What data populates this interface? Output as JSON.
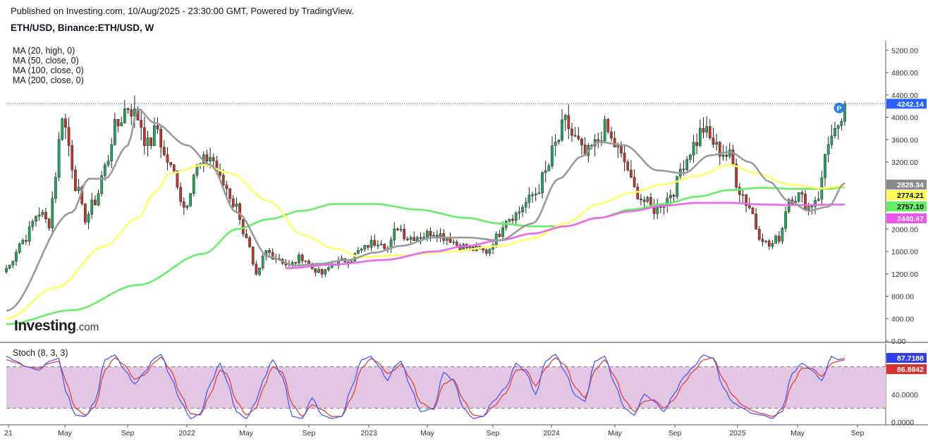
{
  "header": {
    "published": "Published on Investing.com, 10/Aug/2025 - 23:30:00 GMT, Powered by TradingView.",
    "symbol": "ETH/USD, Binance:ETH/USD, W"
  },
  "indicators": [
    "MA (20, high, 0)",
    "MA (50, close, 0)",
    "MA (100, close, 0)",
    "MA (200, close, 0)"
  ],
  "stoch_label": "Stoch (8, 3, 3)",
  "logo": {
    "bold": "Investing",
    "suffix": ".com"
  },
  "colors": {
    "up": "#26a65b",
    "down": "#c0392b",
    "ma20": "#9a9a9a",
    "ma50": "#ffff66",
    "ma100": "#66ee66",
    "ma200": "#ee66ee",
    "stochK": "#4a5cf0",
    "stochD": "#e04040",
    "stochBand": "#e2c6e2",
    "priceLine": "#2962ff"
  },
  "chart_data": {
    "type": "candlestick",
    "interval": "W",
    "price_axis": {
      "ticks": [
        "5200.00",
        "4800.00",
        "4400.00",
        "4000.00",
        "3600.00",
        "3200.00",
        "2000.00",
        "1600.00",
        "1200.00",
        "800.00",
        "400.00",
        "0.00"
      ],
      "ylim": [
        0,
        5400
      ]
    },
    "x_ticks": [
      "21",
      "May",
      "Sep",
      "2022",
      "May",
      "Sep",
      "2023",
      "May",
      "Sep",
      "2024",
      "May",
      "Sep",
      "2025",
      "May",
      "Sep"
    ],
    "labels": {
      "last_price": "4242.14",
      "ma20": "2828.34",
      "ma50": "2774.21",
      "ma100": "2757.10",
      "ma200": "2440.47",
      "pin": "P"
    },
    "stoch_axis": {
      "ticks": [
        "40.0000",
        "0.0000"
      ],
      "ylim": [
        0,
        100
      ]
    },
    "stoch_labels": {
      "k": "87.7188",
      "d": "86.8842"
    },
    "stoch_band": [
      20,
      80
    ],
    "price_anchors": [
      [
        0,
        1300
      ],
      [
        5,
        1800
      ],
      [
        10,
        2300
      ],
      [
        13,
        2100
      ],
      [
        15,
        3000
      ],
      [
        17,
        4100
      ],
      [
        19,
        3500
      ],
      [
        21,
        2800
      ],
      [
        24,
        2200
      ],
      [
        27,
        2500
      ],
      [
        30,
        3100
      ],
      [
        33,
        3800
      ],
      [
        37,
        4200
      ],
      [
        40,
        4000
      ],
      [
        43,
        3500
      ],
      [
        46,
        3800
      ],
      [
        48,
        3300
      ],
      [
        51,
        3000
      ],
      [
        54,
        2400
      ],
      [
        58,
        3100
      ],
      [
        62,
        3300
      ],
      [
        66,
        2800
      ],
      [
        70,
        2400
      ],
      [
        73,
        1800
      ],
      [
        76,
        1150
      ],
      [
        79,
        1600
      ],
      [
        82,
        1500
      ],
      [
        86,
        1350
      ],
      [
        90,
        1500
      ],
      [
        93,
        1300
      ],
      [
        96,
        1200
      ],
      [
        100,
        1400
      ],
      [
        104,
        1450
      ],
      [
        108,
        1620
      ],
      [
        111,
        1750
      ],
      [
        114,
        1800
      ],
      [
        116,
        1650
      ],
      [
        119,
        2050
      ],
      [
        122,
        1850
      ],
      [
        126,
        1880
      ],
      [
        130,
        1950
      ],
      [
        134,
        1850
      ],
      [
        138,
        1700
      ],
      [
        142,
        1640
      ],
      [
        146,
        1600
      ],
      [
        149,
        1850
      ],
      [
        152,
        2200
      ],
      [
        155,
        2270
      ],
      [
        158,
        2470
      ],
      [
        161,
        2650
      ],
      [
        164,
        3000
      ],
      [
        167,
        3500
      ],
      [
        170,
        3900
      ],
      [
        173,
        3600
      ],
      [
        176,
        3300
      ],
      [
        179,
        3500
      ],
      [
        182,
        3800
      ],
      [
        185,
        3500
      ],
      [
        188,
        3200
      ],
      [
        191,
        2700
      ],
      [
        194,
        2500
      ],
      [
        197,
        2350
      ],
      [
        200,
        2500
      ],
      [
        203,
        2700
      ],
      [
        206,
        3200
      ],
      [
        209,
        3500
      ],
      [
        212,
        3800
      ],
      [
        214,
        3600
      ],
      [
        217,
        3400
      ],
      [
        220,
        3300
      ],
      [
        223,
        2700
      ],
      [
        226,
        2400
      ],
      [
        229,
        1900
      ],
      [
        232,
        1700
      ],
      [
        235,
        1850
      ],
      [
        238,
        2550
      ],
      [
        241,
        2600
      ],
      [
        244,
        2400
      ],
      [
        247,
        2600
      ],
      [
        250,
        3600
      ],
      [
        253,
        3700
      ],
      [
        255,
        4242
      ]
    ],
    "ma_anchors": {
      "ma20": [
        [
          0,
          540
        ],
        [
          20,
          2300
        ],
        [
          25,
          2900
        ],
        [
          30,
          2900
        ],
        [
          37,
          3500
        ],
        [
          40,
          4150
        ],
        [
          45,
          3900
        ],
        [
          55,
          3500
        ],
        [
          62,
          3150
        ],
        [
          70,
          2300
        ],
        [
          80,
          1500
        ],
        [
          88,
          1350
        ],
        [
          95,
          1380
        ],
        [
          104,
          1450
        ],
        [
          112,
          1580
        ],
        [
          120,
          1700
        ],
        [
          130,
          1850
        ],
        [
          140,
          1850
        ],
        [
          150,
          1800
        ],
        [
          160,
          2100
        ],
        [
          168,
          2900
        ],
        [
          175,
          3300
        ],
        [
          180,
          3560
        ],
        [
          188,
          3500
        ],
        [
          198,
          3050
        ],
        [
          206,
          3000
        ],
        [
          214,
          3320
        ],
        [
          220,
          3380
        ],
        [
          226,
          3200
        ],
        [
          232,
          2850
        ],
        [
          238,
          2500
        ],
        [
          244,
          2330
        ],
        [
          250,
          2400
        ],
        [
          255,
          2828
        ]
      ],
      "ma50": [
        [
          0,
          400
        ],
        [
          15,
          950
        ],
        [
          30,
          1700
        ],
        [
          40,
          2200
        ],
        [
          45,
          2650
        ],
        [
          50,
          3000
        ],
        [
          60,
          3150
        ],
        [
          68,
          3000
        ],
        [
          80,
          2500
        ],
        [
          90,
          1900
        ],
        [
          100,
          1650
        ],
        [
          108,
          1500
        ],
        [
          120,
          1530
        ],
        [
          135,
          1600
        ],
        [
          150,
          1700
        ],
        [
          160,
          1830
        ],
        [
          170,
          2100
        ],
        [
          180,
          2450
        ],
        [
          190,
          2650
        ],
        [
          200,
          2800
        ],
        [
          210,
          2950
        ],
        [
          220,
          3150
        ],
        [
          228,
          3000
        ],
        [
          238,
          2800
        ],
        [
          248,
          2730
        ],
        [
          255,
          2774
        ]
      ],
      "ma100": [
        [
          0,
          300
        ],
        [
          20,
          550
        ],
        [
          40,
          1000
        ],
        [
          60,
          1560
        ],
        [
          70,
          2000
        ],
        [
          80,
          2180
        ],
        [
          90,
          2330
        ],
        [
          100,
          2450
        ],
        [
          112,
          2450
        ],
        [
          125,
          2350
        ],
        [
          140,
          2200
        ],
        [
          150,
          2100
        ],
        [
          160,
          2050
        ],
        [
          170,
          2050
        ],
        [
          180,
          2200
        ],
        [
          190,
          2350
        ],
        [
          200,
          2450
        ],
        [
          210,
          2580
        ],
        [
          220,
          2700
        ],
        [
          230,
          2740
        ],
        [
          240,
          2720
        ],
        [
          250,
          2720
        ],
        [
          255,
          2757
        ]
      ],
      "ma200": [
        [
          85,
          1300
        ],
        [
          100,
          1370
        ],
        [
          115,
          1450
        ],
        [
          130,
          1600
        ],
        [
          140,
          1700
        ],
        [
          150,
          1800
        ],
        [
          160,
          1920
        ],
        [
          170,
          2050
        ],
        [
          180,
          2200
        ],
        [
          190,
          2320
        ],
        [
          200,
          2420
        ],
        [
          210,
          2470
        ],
        [
          220,
          2470
        ],
        [
          230,
          2440
        ],
        [
          240,
          2430
        ],
        [
          255,
          2440
        ]
      ]
    },
    "stoch_k_anchors": [
      [
        0,
        95
      ],
      [
        3,
        88
      ],
      [
        6,
        80
      ],
      [
        10,
        75
      ],
      [
        13,
        88
      ],
      [
        16,
        92
      ],
      [
        18,
        45
      ],
      [
        21,
        10
      ],
      [
        24,
        8
      ],
      [
        27,
        30
      ],
      [
        30,
        90
      ],
      [
        33,
        97
      ],
      [
        36,
        75
      ],
      [
        39,
        55
      ],
      [
        42,
        72
      ],
      [
        45,
        92
      ],
      [
        47,
        98
      ],
      [
        50,
        65
      ],
      [
        53,
        30
      ],
      [
        56,
        5
      ],
      [
        59,
        12
      ],
      [
        62,
        55
      ],
      [
        65,
        85
      ],
      [
        67,
        60
      ],
      [
        70,
        15
      ],
      [
        73,
        5
      ],
      [
        76,
        30
      ],
      [
        78,
        60
      ],
      [
        81,
        90
      ],
      [
        84,
        65
      ],
      [
        87,
        8
      ],
      [
        90,
        5
      ],
      [
        93,
        35
      ],
      [
        96,
        10
      ],
      [
        99,
        5
      ],
      [
        102,
        8
      ],
      [
        105,
        50
      ],
      [
        108,
        90
      ],
      [
        111,
        95
      ],
      [
        113,
        82
      ],
      [
        116,
        60
      ],
      [
        118,
        80
      ],
      [
        120,
        88
      ],
      [
        123,
        50
      ],
      [
        126,
        15
      ],
      [
        130,
        20
      ],
      [
        133,
        72
      ],
      [
        136,
        60
      ],
      [
        139,
        20
      ],
      [
        142,
        5
      ],
      [
        145,
        8
      ],
      [
        148,
        30
      ],
      [
        152,
        50
      ],
      [
        155,
        85
      ],
      [
        158,
        72
      ],
      [
        161,
        40
      ],
      [
        164,
        88
      ],
      [
        167,
        98
      ],
      [
        170,
        72
      ],
      [
        173,
        38
      ],
      [
        176,
        30
      ],
      [
        179,
        88
      ],
      [
        182,
        95
      ],
      [
        185,
        55
      ],
      [
        188,
        20
      ],
      [
        191,
        10
      ],
      [
        194,
        40
      ],
      [
        197,
        30
      ],
      [
        200,
        15
      ],
      [
        203,
        40
      ],
      [
        206,
        65
      ],
      [
        209,
        80
      ],
      [
        212,
        97
      ],
      [
        215,
        92
      ],
      [
        218,
        50
      ],
      [
        221,
        28
      ],
      [
        224,
        20
      ],
      [
        227,
        12
      ],
      [
        230,
        10
      ],
      [
        233,
        5
      ],
      [
        236,
        20
      ],
      [
        239,
        70
      ],
      [
        242,
        85
      ],
      [
        245,
        75
      ],
      [
        248,
        60
      ],
      [
        251,
        95
      ],
      [
        253,
        90
      ],
      [
        255,
        92
      ]
    ],
    "stoch_d_anchors": [
      [
        0,
        90
      ],
      [
        3,
        86
      ],
      [
        6,
        80
      ],
      [
        10,
        78
      ],
      [
        13,
        85
      ],
      [
        16,
        88
      ],
      [
        18,
        60
      ],
      [
        21,
        20
      ],
      [
        24,
        10
      ],
      [
        27,
        22
      ],
      [
        30,
        75
      ],
      [
        33,
        93
      ],
      [
        36,
        82
      ],
      [
        39,
        62
      ],
      [
        42,
        68
      ],
      [
        45,
        86
      ],
      [
        47,
        94
      ],
      [
        50,
        75
      ],
      [
        53,
        40
      ],
      [
        56,
        12
      ],
      [
        59,
        10
      ],
      [
        62,
        40
      ],
      [
        65,
        75
      ],
      [
        67,
        70
      ],
      [
        70,
        30
      ],
      [
        73,
        10
      ],
      [
        76,
        20
      ],
      [
        78,
        48
      ],
      [
        81,
        80
      ],
      [
        84,
        72
      ],
      [
        87,
        25
      ],
      [
        90,
        8
      ],
      [
        93,
        25
      ],
      [
        96,
        18
      ],
      [
        99,
        8
      ],
      [
        102,
        8
      ],
      [
        105,
        35
      ],
      [
        108,
        78
      ],
      [
        111,
        92
      ],
      [
        113,
        86
      ],
      [
        116,
        70
      ],
      [
        118,
        75
      ],
      [
        120,
        84
      ],
      [
        123,
        62
      ],
      [
        126,
        28
      ],
      [
        130,
        18
      ],
      [
        133,
        55
      ],
      [
        136,
        62
      ],
      [
        139,
        32
      ],
      [
        142,
        10
      ],
      [
        145,
        8
      ],
      [
        148,
        22
      ],
      [
        152,
        42
      ],
      [
        155,
        75
      ],
      [
        158,
        76
      ],
      [
        161,
        52
      ],
      [
        164,
        78
      ],
      [
        167,
        93
      ],
      [
        170,
        82
      ],
      [
        173,
        50
      ],
      [
        176,
        35
      ],
      [
        179,
        75
      ],
      [
        182,
        90
      ],
      [
        185,
        66
      ],
      [
        188,
        32
      ],
      [
        191,
        15
      ],
      [
        194,
        30
      ],
      [
        197,
        32
      ],
      [
        200,
        20
      ],
      [
        203,
        32
      ],
      [
        206,
        56
      ],
      [
        209,
        74
      ],
      [
        212,
        90
      ],
      [
        215,
        93
      ],
      [
        218,
        62
      ],
      [
        221,
        38
      ],
      [
        224,
        24
      ],
      [
        227,
        16
      ],
      [
        230,
        12
      ],
      [
        233,
        8
      ],
      [
        236,
        15
      ],
      [
        239,
        55
      ],
      [
        242,
        78
      ],
      [
        245,
        78
      ],
      [
        248,
        66
      ],
      [
        251,
        85
      ],
      [
        253,
        88
      ],
      [
        255,
        90
      ]
    ]
  }
}
